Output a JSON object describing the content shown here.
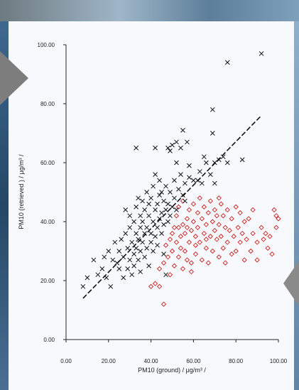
{
  "chart_data": {
    "type": "scatter",
    "xlabel": "PM10 (ground) / μg/m³ /",
    "ylabel": "PM10 (retrieved )  / μg/m³ /",
    "xlim": [
      0,
      100
    ],
    "ylim": [
      0,
      100
    ],
    "x_ticks": [
      "0.00",
      "20.00",
      "40.00",
      "60.00",
      "80.00",
      "100.00"
    ],
    "y_ticks": [
      "0.00",
      "20.00",
      "40.00",
      "60.00",
      "80.00",
      "100.00"
    ],
    "grid": false,
    "colors": {
      "black_series": "#111111",
      "red_series": "#cc1f1f",
      "fit_line": "#111111"
    },
    "series": [
      {
        "marker": "x",
        "color": "#111111",
        "points": [
          [
            8,
            18
          ],
          [
            10,
            21
          ],
          [
            13,
            27
          ],
          [
            15,
            22
          ],
          [
            17,
            24
          ],
          [
            18,
            28
          ],
          [
            19,
            21
          ],
          [
            20,
            30
          ],
          [
            21,
            18
          ],
          [
            22,
            27
          ],
          [
            23,
            33
          ],
          [
            24,
            26
          ],
          [
            25,
            24
          ],
          [
            25,
            30
          ],
          [
            26,
            34
          ],
          [
            27,
            21
          ],
          [
            27,
            28
          ],
          [
            28,
            36
          ],
          [
            28,
            44
          ],
          [
            29,
            24
          ],
          [
            29,
            31
          ],
          [
            30,
            27
          ],
          [
            30,
            38
          ],
          [
            30,
            42
          ],
          [
            31,
            22
          ],
          [
            31,
            33
          ],
          [
            32,
            25
          ],
          [
            32,
            29
          ],
          [
            32,
            40
          ],
          [
            33,
            31
          ],
          [
            33,
            36
          ],
          [
            33,
            45
          ],
          [
            34,
            27
          ],
          [
            34,
            34
          ],
          [
            34,
            48
          ],
          [
            35,
            23
          ],
          [
            35,
            30
          ],
          [
            35,
            38
          ],
          [
            35,
            42
          ],
          [
            36,
            33
          ],
          [
            36,
            40
          ],
          [
            36,
            47
          ],
          [
            37,
            28
          ],
          [
            37,
            36
          ],
          [
            37,
            44
          ],
          [
            38,
            31
          ],
          [
            38,
            38
          ],
          [
            38,
            50
          ],
          [
            39,
            25
          ],
          [
            39,
            42
          ],
          [
            39,
            46
          ],
          [
            40,
            33
          ],
          [
            40,
            36
          ],
          [
            40,
            48
          ],
          [
            41,
            30
          ],
          [
            41,
            40
          ],
          [
            41,
            52
          ],
          [
            42,
            35
          ],
          [
            42,
            44
          ],
          [
            42,
            56
          ],
          [
            43,
            32
          ],
          [
            43,
            38
          ],
          [
            43,
            46
          ],
          [
            44,
            41
          ],
          [
            44,
            49
          ],
          [
            44,
            54
          ],
          [
            45,
            36
          ],
          [
            45,
            43
          ],
          [
            45,
            50
          ],
          [
            46,
            29
          ],
          [
            46,
            39
          ],
          [
            46,
            47
          ],
          [
            47,
            22
          ],
          [
            47,
            44
          ],
          [
            47,
            52
          ],
          [
            48,
            40
          ],
          [
            48,
            46
          ],
          [
            48,
            65
          ],
          [
            49,
            42
          ],
          [
            49,
            50
          ],
          [
            50,
            45
          ],
          [
            50,
            66
          ],
          [
            51,
            48
          ],
          [
            51,
            54
          ],
          [
            52,
            44
          ],
          [
            52,
            60
          ],
          [
            52,
            67
          ],
          [
            53,
            51
          ],
          [
            54,
            56
          ],
          [
            54,
            65
          ],
          [
            55,
            49
          ],
          [
            55,
            71
          ],
          [
            56,
            47
          ],
          [
            56,
            53
          ],
          [
            57,
            67
          ],
          [
            58,
            55
          ],
          [
            58,
            59
          ],
          [
            60,
            54
          ],
          [
            62,
            54
          ],
          [
            63,
            57
          ],
          [
            64,
            53
          ],
          [
            65,
            62
          ],
          [
            66,
            60
          ],
          [
            68,
            56
          ],
          [
            69,
            70
          ],
          [
            69,
            78
          ],
          [
            70,
            60
          ],
          [
            70,
            53
          ],
          [
            72,
            61
          ],
          [
            74,
            62
          ],
          [
            76,
            60
          ],
          [
            76,
            94
          ],
          [
            83,
            61
          ],
          [
            92,
            97
          ],
          [
            33,
            65
          ],
          [
            42,
            65
          ],
          [
            49,
            64
          ]
        ]
      },
      {
        "marker": "diamond",
        "color": "#cc1f1f",
        "points": [
          [
            40,
            18
          ],
          [
            42,
            19
          ],
          [
            44,
            24
          ],
          [
            44,
            18
          ],
          [
            46,
            12
          ],
          [
            46,
            26
          ],
          [
            47,
            32
          ],
          [
            48,
            28
          ],
          [
            49,
            22
          ],
          [
            49,
            34
          ],
          [
            50,
            30
          ],
          [
            50,
            36
          ],
          [
            51,
            25
          ],
          [
            51,
            38
          ],
          [
            52,
            33
          ],
          [
            52,
            42
          ],
          [
            53,
            28
          ],
          [
            53,
            45
          ],
          [
            54,
            35
          ],
          [
            54,
            31
          ],
          [
            55,
            24
          ],
          [
            55,
            39
          ],
          [
            55,
            47
          ],
          [
            56,
            36
          ],
          [
            56,
            30
          ],
          [
            57,
            41
          ],
          [
            57,
            27
          ],
          [
            58,
            44
          ],
          [
            58,
            33
          ],
          [
            59,
            37
          ],
          [
            59,
            23
          ],
          [
            60,
            40
          ],
          [
            60,
            46
          ],
          [
            61,
            35
          ],
          [
            61,
            29
          ],
          [
            62,
            43
          ],
          [
            62,
            38
          ],
          [
            63,
            33
          ],
          [
            63,
            48
          ],
          [
            64,
            41
          ],
          [
            64,
            27
          ],
          [
            65,
            36
          ],
          [
            65,
            45
          ],
          [
            66,
            31
          ],
          [
            66,
            39
          ],
          [
            67,
            43
          ],
          [
            67,
            26
          ],
          [
            68,
            35
          ],
          [
            68,
            47
          ],
          [
            69,
            40
          ],
          [
            69,
            30
          ],
          [
            70,
            44
          ],
          [
            70,
            37
          ],
          [
            71,
            34
          ],
          [
            71,
            42
          ],
          [
            72,
            28
          ],
          [
            72,
            39
          ],
          [
            73,
            46
          ],
          [
            73,
            35
          ],
          [
            74,
            31
          ],
          [
            74,
            42
          ],
          [
            75,
            38
          ],
          [
            75,
            26
          ],
          [
            76,
            44
          ],
          [
            76,
            33
          ],
          [
            77,
            37
          ],
          [
            78,
            41
          ],
          [
            78,
            29
          ],
          [
            79,
            35
          ],
          [
            80,
            45
          ],
          [
            80,
            30
          ],
          [
            81,
            38
          ],
          [
            82,
            33
          ],
          [
            82,
            43
          ],
          [
            83,
            36
          ],
          [
            84,
            40
          ],
          [
            84,
            27
          ],
          [
            85,
            34
          ],
          [
            86,
            41
          ],
          [
            87,
            30
          ],
          [
            88,
            44
          ],
          [
            88,
            36
          ],
          [
            90,
            33
          ],
          [
            90,
            27
          ],
          [
            92,
            38
          ],
          [
            93,
            34
          ],
          [
            94,
            36
          ],
          [
            95,
            31
          ],
          [
            96,
            35
          ],
          [
            97,
            29
          ],
          [
            98,
            44
          ],
          [
            99,
            42
          ],
          [
            99,
            38
          ],
          [
            100,
            41
          ],
          [
            57,
            38
          ],
          [
            61,
            32
          ],
          [
            53,
            38
          ],
          [
            59,
            26
          ],
          [
            66,
            34
          ],
          [
            72,
            48
          ]
        ]
      }
    ],
    "fit_line": [
      [
        8,
        14
      ],
      [
        92,
        76
      ]
    ]
  }
}
